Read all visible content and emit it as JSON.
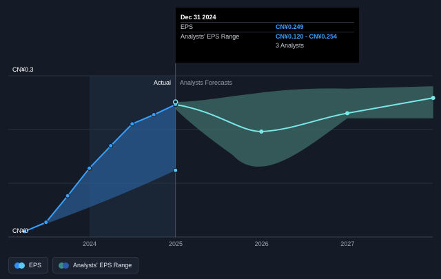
{
  "tooltip": {
    "date": "Dec 31 2024",
    "rows": [
      {
        "label": "EPS",
        "value": "CN¥0.249"
      },
      {
        "label": "Analysts' EPS Range",
        "value": "CN¥0.120 - CN¥0.254"
      },
      {
        "label": "",
        "value": "3 Analysts"
      }
    ]
  },
  "labels": {
    "actual": "Actual",
    "forecast": "Analysts Forecasts",
    "y_top": "CN¥0.3",
    "y_bottom": "CN¥0"
  },
  "legend": [
    {
      "label": "EPS",
      "colors": [
        "#2f8fff",
        "#5bc8f5"
      ]
    },
    {
      "label": "Analysts' EPS Range",
      "colors": [
        "#3a8a85",
        "#2a5aa8"
      ]
    }
  ],
  "colors": {
    "background": "#151b26",
    "eps_actual": "#3aa0ff",
    "eps_forecast": "#7ae8e8",
    "range_actual": "#2f6fb5",
    "range_forecast": "#3f6e6a"
  },
  "chart_data": {
    "type": "line",
    "x_ticks": [
      "2024",
      "2025",
      "2026",
      "2027"
    ],
    "xlim": [
      "2023-01-01",
      "2028-12-31"
    ],
    "ylim": [
      0,
      0.3
    ],
    "y_ticks": [
      "CN¥0",
      "CN¥0.3"
    ],
    "grid": true,
    "series": [
      {
        "name": "EPS",
        "points": [
          {
            "x": "2023-03-31",
            "y": 0.0
          },
          {
            "x": "2023-06-30",
            "y": 0.018
          },
          {
            "x": "2023-09-30",
            "y": 0.07
          },
          {
            "x": "2023-12-31",
            "y": 0.124
          },
          {
            "x": "2024-03-31",
            "y": 0.168
          },
          {
            "x": "2024-06-30",
            "y": 0.211
          },
          {
            "x": "2024-09-30",
            "y": 0.229
          },
          {
            "x": "2024-12-31",
            "y": 0.249
          }
        ]
      },
      {
        "name": "EPS Forecast",
        "points": [
          {
            "x": "2024-12-31",
            "y": 0.249
          },
          {
            "x": "2025-12-31",
            "y": 0.196
          },
          {
            "x": "2026-12-31",
            "y": 0.232
          },
          {
            "x": "2027-12-31",
            "y": 0.262
          }
        ]
      },
      {
        "name": "Analysts' EPS Range",
        "points": [
          {
            "x": "2023-03-31",
            "low": 0.0,
            "high": 0.0
          },
          {
            "x": "2024-12-31",
            "low": 0.12,
            "high": 0.254
          },
          {
            "x": "2025-12-31",
            "low": 0.142,
            "high": 0.254
          },
          {
            "x": "2026-12-31",
            "low": 0.222,
            "high": 0.28
          },
          {
            "x": "2027-12-31",
            "low": 0.222,
            "high": 0.285
          }
        ]
      }
    ],
    "tooltip_x": "2024-12-31"
  }
}
